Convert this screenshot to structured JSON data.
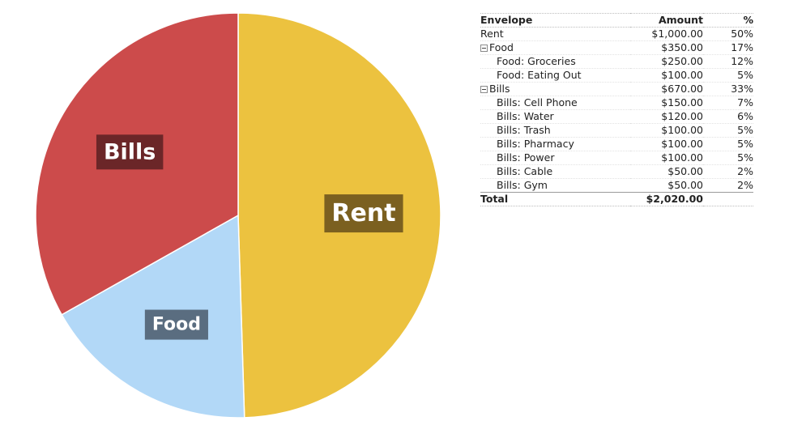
{
  "chart_data": {
    "type": "pie",
    "series": [
      {
        "label": "Rent",
        "value": 1000,
        "color": "#ecc23f",
        "label_bg": "#7b6020"
      },
      {
        "label": "Food",
        "value": 350,
        "color": "#b2d8f7",
        "label_bg": "#5a6d80"
      },
      {
        "label": "Bills",
        "value": 670,
        "color": "#cc4b4b",
        "label_bg": "#6b2628"
      }
    ],
    "start_angle_deg": 0,
    "direction": "clockwise",
    "legend": "none"
  },
  "table": {
    "headers": {
      "name": "Envelope",
      "amount": "Amount",
      "pct": "%"
    },
    "rows": [
      {
        "name": "Rent",
        "amount": "$1,000.00",
        "pct": "50%",
        "level": 0,
        "group": false
      },
      {
        "name": "Food",
        "amount": "$350.00",
        "pct": "17%",
        "level": 0,
        "group": true,
        "toggle_icon": "collapse-minus-icon"
      },
      {
        "name": "Food: Groceries",
        "amount": "$250.00",
        "pct": "12%",
        "level": 1,
        "group": false
      },
      {
        "name": "Food: Eating Out",
        "amount": "$100.00",
        "pct": "5%",
        "level": 1,
        "group": false
      },
      {
        "name": "Bills",
        "amount": "$670.00",
        "pct": "33%",
        "level": 0,
        "group": true,
        "toggle_icon": "collapse-minus-icon"
      },
      {
        "name": "Bills: Cell Phone",
        "amount": "$150.00",
        "pct": "7%",
        "level": 1,
        "group": false
      },
      {
        "name": "Bills: Water",
        "amount": "$120.00",
        "pct": "6%",
        "level": 1,
        "group": false
      },
      {
        "name": "Bills: Trash",
        "amount": "$100.00",
        "pct": "5%",
        "level": 1,
        "group": false
      },
      {
        "name": "Bills: Pharmacy",
        "amount": "$100.00",
        "pct": "5%",
        "level": 1,
        "group": false
      },
      {
        "name": "Bills: Power",
        "amount": "$100.00",
        "pct": "5%",
        "level": 1,
        "group": false
      },
      {
        "name": "Bills: Cable",
        "amount": "$50.00",
        "pct": "2%",
        "level": 1,
        "group": false
      },
      {
        "name": "Bills: Gym",
        "amount": "$50.00",
        "pct": "2%",
        "level": 1,
        "group": false
      }
    ],
    "total": {
      "name": "Total",
      "amount": "$2,020.00",
      "pct": ""
    }
  }
}
